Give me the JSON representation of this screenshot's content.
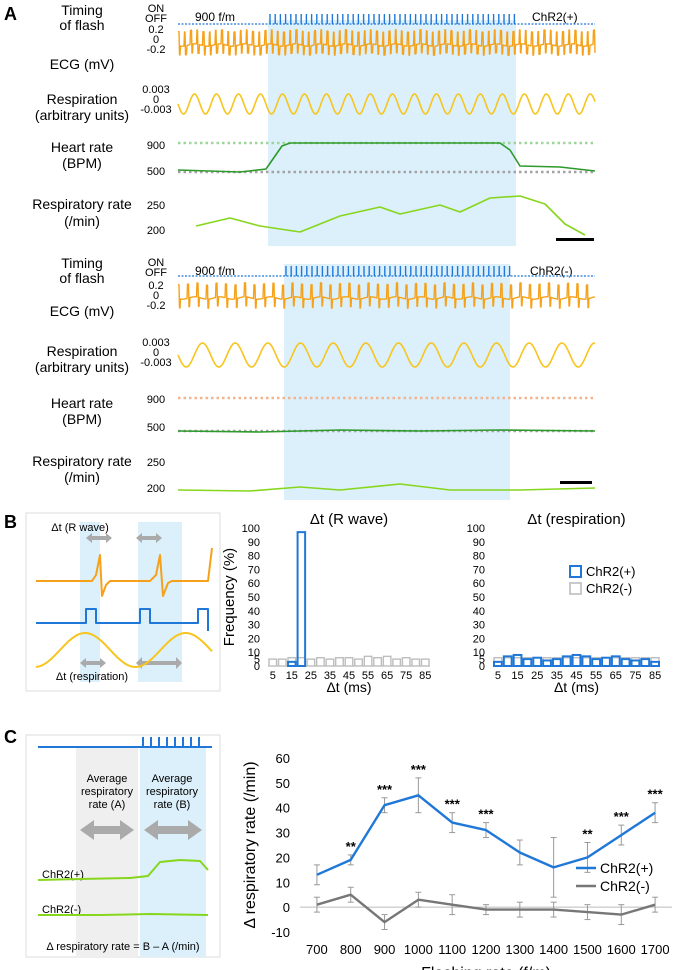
{
  "panel_letters": {
    "a": "A",
    "b": "B",
    "c": "C"
  },
  "colors": {
    "orange": "#f5a21a",
    "yellow": "#f7c51e",
    "green_dark": "#2e9a2b",
    "green_light": "#86d61c",
    "blue": "#1f78d8",
    "gray": "#bdbdbd",
    "gray_dark": "#777777",
    "highlight": "#dcf0fb",
    "dot_green": "#9ed69a",
    "dot_gray": "#a3a3a3",
    "dot_salmon": "#f2b38f"
  },
  "panel_a": {
    "top": {
      "timing_label": [
        "Timing",
        "of flash"
      ],
      "on_off": [
        "ON",
        "OFF"
      ],
      "rate_label": "900 f/m",
      "group": "ChR2(+)",
      "ecg_ticks": [
        "0.2",
        "0",
        "-0.2"
      ],
      "ecg_label": "ECG (mV)",
      "resp_ticks": [
        "0.003",
        "0",
        "-0.003"
      ],
      "resp_label": [
        "Respiration",
        "(arbitrary units)"
      ],
      "hr_label": [
        "Heart rate",
        "(BPM)"
      ],
      "hr_ticks": [
        "900",
        "500"
      ],
      "rr_label": [
        "Respiratory rate",
        "(/min)"
      ],
      "rr_ticks": [
        "250",
        "200"
      ]
    },
    "bottom": {
      "timing_label": [
        "Timing",
        "of flash"
      ],
      "on_off": [
        "ON",
        "OFF"
      ],
      "rate_label": "900 f/m",
      "group": "ChR2(-)",
      "ecg_ticks": [
        "0.2",
        "0",
        "-0.2"
      ],
      "ecg_label": "ECG (mV)",
      "resp_ticks": [
        "0.003",
        "0",
        "-0.003"
      ],
      "resp_label": [
        "Respiration",
        "(arbitrary units)"
      ],
      "hr_label": [
        "Heart rate",
        "(BPM)"
      ],
      "hr_ticks": [
        "900",
        "500"
      ],
      "rr_label": [
        "Respiratory rate",
        "(/min)"
      ],
      "rr_ticks": [
        "250",
        "200"
      ]
    }
  },
  "panel_b": {
    "schematic": {
      "dt_r": "Δt (R wave)",
      "dt_resp": "Δt (respiration)"
    },
    "legend": [
      "ChR2(+)",
      "ChR2(-)"
    ],
    "ylabel": "Frequency (%)",
    "xlabel": "Δt (ms)"
  },
  "panel_c": {
    "schematic": {
      "avg_a": [
        "Average",
        "respiratory",
        "rate (A)"
      ],
      "avg_b": [
        "Average",
        "respiratory",
        "rate (B)"
      ],
      "pos": "ChR2(+)",
      "neg": "ChR2(-)",
      "formula": "Δ respiratory rate = B – A (/min)"
    }
  },
  "chart_data": [
    {
      "type": "bar",
      "title": "Δt (R wave)",
      "xlabel": "Δt (ms)",
      "ylabel": "Frequency (%)",
      "ylim": [
        0,
        100
      ],
      "yticks": [
        0,
        5,
        10,
        20,
        30,
        40,
        50,
        60,
        70,
        80,
        90,
        100
      ],
      "categories": [
        "5",
        "10",
        "15",
        "20",
        "25",
        "30",
        "35",
        "40",
        "45",
        "50",
        "55",
        "60",
        "65",
        "70",
        "75",
        "80",
        "85"
      ],
      "xtick_labels": [
        "5",
        "15",
        "25",
        "35",
        "45",
        "55",
        "65",
        "75",
        "85"
      ],
      "series": [
        {
          "name": "ChR2(+)",
          "values": [
            0,
            0,
            3,
            97,
            0,
            0,
            0,
            0,
            0,
            0,
            0,
            0,
            0,
            0,
            0,
            0,
            0
          ]
        },
        {
          "name": "ChR2(-)",
          "values": [
            5,
            5,
            6,
            6,
            5,
            6,
            5,
            6,
            6,
            5,
            7,
            6,
            7,
            5,
            6,
            5,
            5
          ]
        }
      ]
    },
    {
      "type": "bar",
      "title": "Δt (respiration)",
      "xlabel": "Δt (ms)",
      "ylabel": "Frequency (%)",
      "ylim": [
        0,
        100
      ],
      "yticks": [
        0,
        5,
        10,
        20,
        30,
        40,
        50,
        60,
        70,
        80,
        90,
        100
      ],
      "categories": [
        "5",
        "10",
        "15",
        "20",
        "25",
        "30",
        "35",
        "40",
        "45",
        "50",
        "55",
        "60",
        "65",
        "70",
        "75",
        "80",
        "85"
      ],
      "xtick_labels": [
        "5",
        "15",
        "25",
        "35",
        "45",
        "55",
        "65",
        "75",
        "85"
      ],
      "series": [
        {
          "name": "ChR2(+)",
          "values": [
            3,
            7,
            8,
            5,
            6,
            4,
            5,
            7,
            8,
            7,
            5,
            6,
            7,
            5,
            4,
            5,
            3
          ]
        },
        {
          "name": "ChR2(-)",
          "values": [
            6,
            6,
            6,
            6,
            6,
            6,
            6,
            6,
            6,
            6,
            6,
            6,
            6,
            6,
            6,
            6,
            6
          ]
        }
      ]
    },
    {
      "type": "line",
      "title": "",
      "xlabel": "Flashing rate (f/m)",
      "ylabel": "Δ respiratory rate (/min)",
      "ylim": [
        -10,
        60
      ],
      "yticks": [
        -10,
        0,
        10,
        20,
        30,
        40,
        50,
        60
      ],
      "x": [
        700,
        800,
        900,
        1000,
        1100,
        1200,
        1300,
        1400,
        1500,
        1600,
        1700
      ],
      "series": [
        {
          "name": "ChR2(+)",
          "values": [
            13,
            19,
            41,
            45,
            34,
            31,
            22,
            16,
            20,
            29,
            38
          ],
          "errors": [
            4,
            2,
            3,
            7,
            4,
            3,
            5,
            12,
            6,
            4,
            4
          ],
          "significance": [
            "",
            "**",
            "***",
            "***",
            "***",
            "***",
            "",
            "",
            "**",
            "***",
            "***"
          ]
        },
        {
          "name": "ChR2(-)",
          "values": [
            1,
            5,
            -6,
            3,
            1,
            -1,
            -1,
            -1,
            -2,
            -3,
            1
          ],
          "errors": [
            3,
            3,
            3,
            3,
            4,
            2,
            3,
            3,
            3,
            4,
            3
          ]
        }
      ],
      "legend_position": "right"
    }
  ]
}
